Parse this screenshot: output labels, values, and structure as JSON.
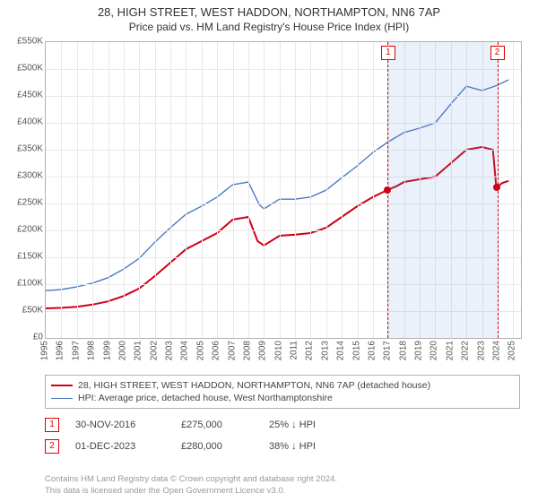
{
  "title": "28, HIGH STREET, WEST HADDON, NORTHAMPTON, NN6 7AP",
  "subtitle": "Price paid vs. HM Land Registry's House Price Index (HPI)",
  "chart": {
    "type": "line",
    "background_color": "#ffffff",
    "grid_color": "#e8e8e8",
    "border_color": "#b0b0b0",
    "y": {
      "min": 0,
      "max": 550000,
      "step": 50000,
      "labels": [
        "£0",
        "£50K",
        "£100K",
        "£150K",
        "£200K",
        "£250K",
        "£300K",
        "£350K",
        "£400K",
        "£450K",
        "£500K",
        "£550K"
      ]
    },
    "x": {
      "min": 1995,
      "max": 2025.5,
      "step": 1,
      "labels": [
        "1995",
        "1996",
        "1997",
        "1998",
        "1999",
        "2000",
        "2001",
        "2002",
        "2003",
        "2004",
        "2005",
        "2006",
        "2007",
        "2008",
        "2009",
        "2010",
        "2011",
        "2012",
        "2013",
        "2014",
        "2015",
        "2016",
        "2017",
        "2018",
        "2019",
        "2020",
        "2021",
        "2022",
        "2023",
        "2024",
        "2025"
      ]
    },
    "shaded_region": {
      "x_start": 2016.92,
      "x_end": 2023.92,
      "fill": "rgba(100,150,220,0.13)",
      "border": "#d00"
    },
    "series": [
      {
        "name": "price_paid",
        "label": "28, HIGH STREET, WEST HADDON, NORTHAMPTON, NN6 7AP (detached house)",
        "color": "#d00016",
        "width": 2,
        "data": [
          [
            1995,
            55000
          ],
          [
            1996,
            56000
          ],
          [
            1997,
            58000
          ],
          [
            1998,
            62000
          ],
          [
            1999,
            68000
          ],
          [
            2000,
            78000
          ],
          [
            2001,
            92000
          ],
          [
            2002,
            115000
          ],
          [
            2003,
            140000
          ],
          [
            2004,
            165000
          ],
          [
            2005,
            180000
          ],
          [
            2006,
            195000
          ],
          [
            2007,
            220000
          ],
          [
            2008,
            225000
          ],
          [
            2008.6,
            180000
          ],
          [
            2009,
            172000
          ],
          [
            2010,
            190000
          ],
          [
            2011,
            192000
          ],
          [
            2012,
            195000
          ],
          [
            2013,
            205000
          ],
          [
            2014,
            225000
          ],
          [
            2015,
            245000
          ],
          [
            2016,
            262000
          ],
          [
            2016.92,
            275000
          ],
          [
            2017.5,
            282000
          ],
          [
            2018,
            290000
          ],
          [
            2019,
            295000
          ],
          [
            2020,
            300000
          ],
          [
            2021,
            325000
          ],
          [
            2022,
            350000
          ],
          [
            2023,
            355000
          ],
          [
            2023.7,
            350000
          ],
          [
            2023.92,
            280000
          ],
          [
            2024.3,
            288000
          ],
          [
            2024.7,
            292000
          ]
        ]
      },
      {
        "name": "hpi",
        "label": "HPI: Average price, detached house, West Northamptonshire",
        "color": "#4a7ac0",
        "width": 1.4,
        "data": [
          [
            1995,
            88000
          ],
          [
            1996,
            90000
          ],
          [
            1997,
            95000
          ],
          [
            1998,
            102000
          ],
          [
            1999,
            112000
          ],
          [
            2000,
            128000
          ],
          [
            2001,
            148000
          ],
          [
            2002,
            178000
          ],
          [
            2003,
            205000
          ],
          [
            2004,
            230000
          ],
          [
            2005,
            245000
          ],
          [
            2006,
            262000
          ],
          [
            2007,
            285000
          ],
          [
            2008,
            290000
          ],
          [
            2008.7,
            248000
          ],
          [
            2009,
            240000
          ],
          [
            2010,
            258000
          ],
          [
            2011,
            258000
          ],
          [
            2012,
            262000
          ],
          [
            2013,
            275000
          ],
          [
            2014,
            298000
          ],
          [
            2015,
            320000
          ],
          [
            2016,
            345000
          ],
          [
            2017,
            365000
          ],
          [
            2018,
            382000
          ],
          [
            2019,
            390000
          ],
          [
            2020,
            400000
          ],
          [
            2021,
            435000
          ],
          [
            2022,
            468000
          ],
          [
            2023,
            460000
          ],
          [
            2024,
            470000
          ],
          [
            2024.7,
            480000
          ]
        ]
      }
    ],
    "markers": [
      {
        "id": "1",
        "x": 2016.92,
        "y": 275000,
        "dot_color": "#d00016"
      },
      {
        "id": "2",
        "x": 2023.92,
        "y": 280000,
        "dot_color": "#d00016"
      }
    ]
  },
  "legend": {
    "series1": "28, HIGH STREET, WEST HADDON, NORTHAMPTON, NN6 7AP (detached house)",
    "series2": "HPI: Average price, detached house, West Northamptonshire"
  },
  "sales": [
    {
      "id": "1",
      "date": "30-NOV-2016",
      "price": "£275,000",
      "pct": "25%",
      "dir": "down",
      "vs": "HPI"
    },
    {
      "id": "2",
      "date": "01-DEC-2023",
      "price": "£280,000",
      "pct": "38%",
      "dir": "down",
      "vs": "HPI"
    }
  ],
  "footer": {
    "line1": "Contains HM Land Registry data © Crown copyright and database right 2024.",
    "line2": "This data is licensed under the Open Government Licence v3.0."
  }
}
